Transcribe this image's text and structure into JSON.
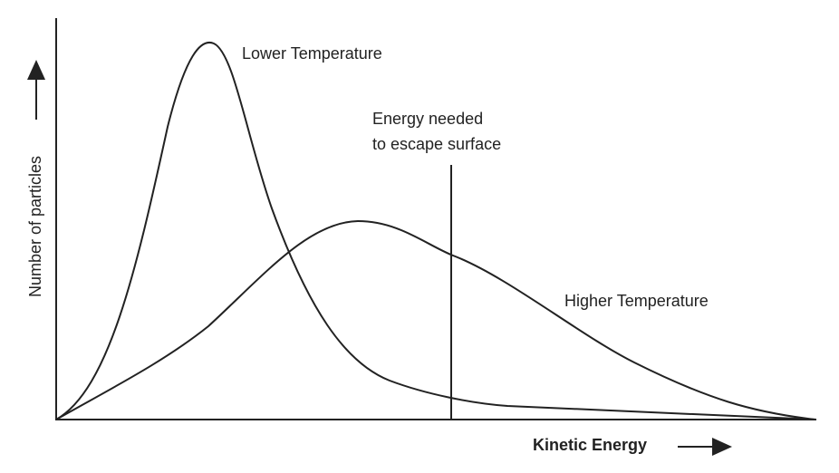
{
  "y_axis_label": "Number of particles",
  "x_axis_label": "Kinetic Energy",
  "curves": [
    {
      "label": "Lower Temperature"
    },
    {
      "label": "Higher Temperature"
    }
  ],
  "threshold": {
    "label_line1": "Energy needed",
    "label_line2": "to escape surface"
  }
}
